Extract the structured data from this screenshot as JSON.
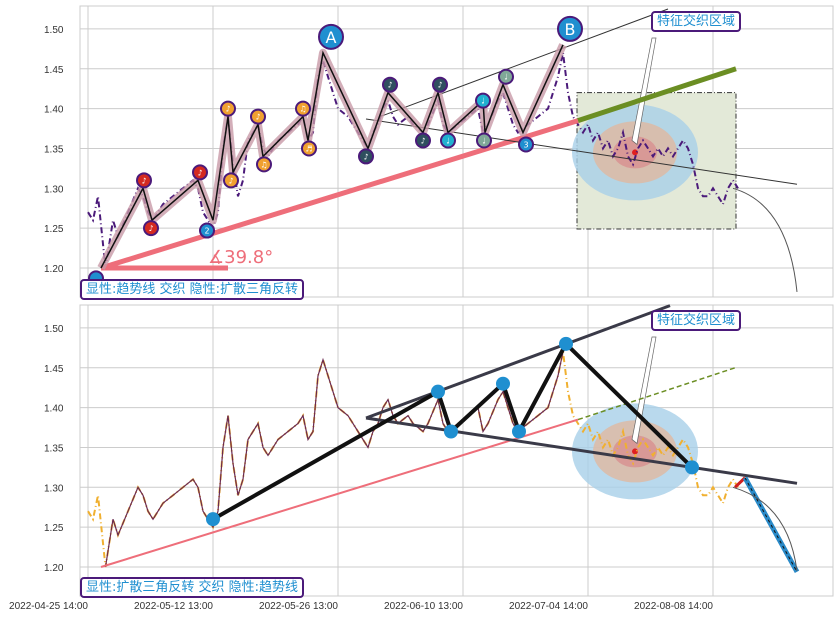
{
  "chart_data": [
    {
      "type": "line",
      "panel": "top",
      "ylim": [
        1.165,
        1.525
      ],
      "yticks": [
        "1.20",
        "1.25",
        "1.30",
        "1.35",
        "1.40",
        "1.45",
        "1.50"
      ],
      "legend_text": "显性:趋势线 交织 隐性:扩散三角反转",
      "callout": "特征交织区域",
      "angle_label": "∡39.8°",
      "trendline": [
        [
          2.6,
          1.2
        ],
        [
          98,
          1.385
        ]
      ],
      "trend_extension": [
        [
          98,
          1.385
        ],
        [
          129.6,
          1.45
        ]
      ],
      "upper_line": [
        [
          58.4,
          1.39
        ],
        [
          116,
          1.525
        ]
      ],
      "lower_line": [
        [
          55.6,
          1.387
        ],
        [
          141.8,
          1.305
        ]
      ],
      "zigzag": [
        [
          2.6,
          1.2
        ],
        [
          11,
          1.3
        ],
        [
          12.8,
          1.26
        ],
        [
          22,
          1.31
        ],
        [
          25,
          1.26
        ],
        [
          28,
          1.39
        ],
        [
          29,
          1.32
        ],
        [
          34,
          1.38
        ],
        [
          35,
          1.34
        ],
        [
          43,
          1.39
        ],
        [
          44,
          1.36
        ],
        [
          47,
          1.47
        ],
        [
          56,
          1.35
        ],
        [
          60,
          1.42
        ],
        [
          67,
          1.37
        ],
        [
          70,
          1.42
        ],
        [
          72,
          1.37
        ],
        [
          79,
          1.41
        ],
        [
          79.4,
          1.37
        ],
        [
          83,
          1.43
        ],
        [
          87,
          1.37
        ],
        [
          95,
          1.48
        ]
      ],
      "markers": [
        {
          "i": 1.6,
          "v": 1.187,
          "c": "#1f8fd0",
          "t": ""
        },
        {
          "i": 11.2,
          "v": 1.31,
          "c": "#d42a20",
          "t": "♪"
        },
        {
          "i": 12.6,
          "v": 1.25,
          "c": "#d42a20",
          "t": "♪"
        },
        {
          "i": 22.4,
          "v": 1.32,
          "c": "#d42a20",
          "t": "♪"
        },
        {
          "i": 23.8,
          "v": 1.247,
          "c": "#1f8fd0",
          "t": "2"
        },
        {
          "i": 28,
          "v": 1.4,
          "c": "#f0a030",
          "t": "♪"
        },
        {
          "i": 28.6,
          "v": 1.31,
          "c": "#f0a030",
          "t": "♪"
        },
        {
          "i": 34,
          "v": 1.39,
          "c": "#f0a030",
          "t": "♪"
        },
        {
          "i": 35.2,
          "v": 1.33,
          "c": "#f0a030",
          "t": "♫"
        },
        {
          "i": 43,
          "v": 1.4,
          "c": "#f0a030",
          "t": "♫"
        },
        {
          "i": 44.2,
          "v": 1.35,
          "c": "#f0a030",
          "t": "♬"
        },
        {
          "i": 55.6,
          "v": 1.34,
          "c": "#2f4f5f",
          "t": "♪"
        },
        {
          "i": 60.4,
          "v": 1.43,
          "c": "#2f4f5f",
          "t": "♪"
        },
        {
          "i": 67,
          "v": 1.36,
          "c": "#2f4f5f",
          "t": "♪"
        },
        {
          "i": 70.4,
          "v": 1.43,
          "c": "#2f4f5f",
          "t": "♪"
        },
        {
          "i": 72,
          "v": 1.36,
          "c": "#20b0d0",
          "t": "♩"
        },
        {
          "i": 79,
          "v": 1.41,
          "c": "#20b0d0",
          "t": "♩"
        },
        {
          "i": 79.2,
          "v": 1.36,
          "c": "#80a898",
          "t": "♩"
        },
        {
          "i": 83.6,
          "v": 1.44,
          "c": "#80a898",
          "t": "♩"
        },
        {
          "i": 87.6,
          "v": 1.355,
          "c": "#1f8fd0",
          "t": "3"
        }
      ],
      "big_markers": [
        {
          "i": 48.6,
          "v": 1.49,
          "t": "A"
        },
        {
          "i": 96.4,
          "v": 1.5,
          "t": "B"
        }
      ],
      "zone": {
        "i0": 97.8,
        "i1": 129.6,
        "v0": 1.249,
        "v1": 1.42,
        "center": [
          109.4,
          1.345
        ]
      }
    },
    {
      "type": "line",
      "panel": "bottom",
      "ylim": [
        1.165,
        1.525
      ],
      "yticks": [
        "1.20",
        "1.25",
        "1.30",
        "1.35",
        "1.40",
        "1.45",
        "1.50"
      ],
      "legend_text": "显性:扩散三角反转 交织 隐性:趋势线",
      "callout": "特征交织区域",
      "trendline": [
        [
          2.6,
          1.2
        ],
        [
          98,
          1.385
        ]
      ],
      "trend_extension": [
        [
          98,
          1.385
        ],
        [
          129.4,
          1.45
        ]
      ],
      "upper_line": [
        [
          55.6,
          1.387
        ],
        [
          116.4,
          1.528
        ]
      ],
      "lower_line": [
        [
          55.6,
          1.387
        ],
        [
          141.8,
          1.305
        ]
      ],
      "pattern": [
        [
          25,
          1.26
        ],
        [
          70,
          1.42
        ],
        [
          72.6,
          1.37
        ],
        [
          83,
          1.43
        ],
        [
          86.2,
          1.37
        ],
        [
          95.6,
          1.48
        ],
        [
          120.8,
          1.325
        ]
      ],
      "forecast": [
        [
          129.4,
          1.3
        ],
        [
          131.4,
          1.312
        ],
        [
          141.8,
          1.194
        ]
      ],
      "zone_center": [
        109.4,
        1.345
      ]
    }
  ],
  "x_axis": {
    "ticks": [
      {
        "i": 0,
        "label": "2022-04-25 14:00"
      },
      {
        "i": 25,
        "label": "2022-05-12 13:00"
      },
      {
        "i": 50,
        "label": "2022-05-26 13:00"
      },
      {
        "i": 75,
        "label": "2022-06-10 13:00"
      },
      {
        "i": 100,
        "label": "2022-07-04 14:00"
      },
      {
        "i": 125,
        "label": "2022-08-08 14:00"
      }
    ]
  },
  "price": [
    [
      0,
      1.27
    ],
    [
      1,
      1.26
    ],
    [
      2,
      1.29
    ],
    [
      3,
      1.23
    ],
    [
      3.5,
      1.2
    ],
    [
      5,
      1.26
    ],
    [
      6,
      1.24
    ],
    [
      8,
      1.27
    ],
    [
      10,
      1.3
    ],
    [
      11,
      1.29
    ],
    [
      12,
      1.27
    ],
    [
      13,
      1.26
    ],
    [
      15,
      1.28
    ],
    [
      17,
      1.29
    ],
    [
      19,
      1.3
    ],
    [
      21,
      1.31
    ],
    [
      22,
      1.3
    ],
    [
      23,
      1.27
    ],
    [
      24,
      1.26
    ],
    [
      25,
      1.25
    ],
    [
      26,
      1.27
    ],
    [
      27,
      1.35
    ],
    [
      28,
      1.39
    ],
    [
      29,
      1.33
    ],
    [
      30,
      1.29
    ],
    [
      31,
      1.31
    ],
    [
      32,
      1.36
    ],
    [
      33,
      1.37
    ],
    [
      34,
      1.38
    ],
    [
      35,
      1.35
    ],
    [
      36,
      1.34
    ],
    [
      38,
      1.36
    ],
    [
      40,
      1.37
    ],
    [
      42,
      1.38
    ],
    [
      43,
      1.39
    ],
    [
      44,
      1.36
    ],
    [
      45,
      1.37
    ],
    [
      46,
      1.44
    ],
    [
      47,
      1.46
    ],
    [
      48,
      1.44
    ],
    [
      49,
      1.42
    ],
    [
      50,
      1.4
    ],
    [
      52,
      1.39
    ],
    [
      54,
      1.37
    ],
    [
      55,
      1.36
    ],
    [
      56,
      1.35
    ],
    [
      57,
      1.37
    ],
    [
      58,
      1.38
    ],
    [
      59,
      1.4
    ],
    [
      60,
      1.41
    ],
    [
      61,
      1.39
    ],
    [
      62,
      1.38
    ],
    [
      64,
      1.39
    ],
    [
      65,
      1.38
    ],
    [
      67,
      1.37
    ],
    [
      68,
      1.38
    ],
    [
      70,
      1.41
    ],
    [
      71,
      1.38
    ],
    [
      72,
      1.37
    ],
    [
      74,
      1.38
    ],
    [
      76,
      1.39
    ],
    [
      78,
      1.4
    ],
    [
      79,
      1.37
    ],
    [
      80,
      1.38
    ],
    [
      82,
      1.41
    ],
    [
      83,
      1.42
    ],
    [
      84,
      1.4
    ],
    [
      85,
      1.38
    ],
    [
      86,
      1.37
    ],
    [
      88,
      1.38
    ],
    [
      90,
      1.39
    ],
    [
      92,
      1.4
    ],
    [
      94,
      1.44
    ],
    [
      95,
      1.47
    ],
    [
      96,
      1.42
    ],
    [
      97,
      1.39
    ],
    [
      98,
      1.38
    ],
    [
      99,
      1.37
    ],
    [
      100,
      1.38
    ],
    [
      101,
      1.36
    ],
    [
      102,
      1.37
    ],
    [
      103,
      1.35
    ],
    [
      104,
      1.36
    ],
    [
      105,
      1.34
    ],
    [
      106,
      1.35
    ],
    [
      107,
      1.37
    ],
    [
      108,
      1.34
    ],
    [
      109,
      1.33
    ],
    [
      110,
      1.35
    ],
    [
      111,
      1.36
    ],
    [
      112,
      1.35
    ],
    [
      113,
      1.34
    ],
    [
      114,
      1.35
    ],
    [
      115,
      1.34
    ],
    [
      116,
      1.35
    ],
    [
      117,
      1.34
    ],
    [
      118,
      1.35
    ],
    [
      119,
      1.36
    ],
    [
      120,
      1.35
    ],
    [
      121,
      1.33
    ],
    [
      122,
      1.3
    ],
    [
      123,
      1.29
    ],
    [
      124,
      1.29
    ],
    [
      125,
      1.3
    ],
    [
      126,
      1.29
    ],
    [
      127,
      1.28
    ],
    [
      128,
      1.3
    ],
    [
      129,
      1.31
    ],
    [
      130,
      1.3
    ]
  ],
  "colors": {
    "trend": "#ee6e7a",
    "green": "#6b8e23",
    "purple": "#4b1a7a",
    "orange": "#f0b030",
    "blue": "#1f8fd0",
    "dark": "#3a3a48"
  }
}
